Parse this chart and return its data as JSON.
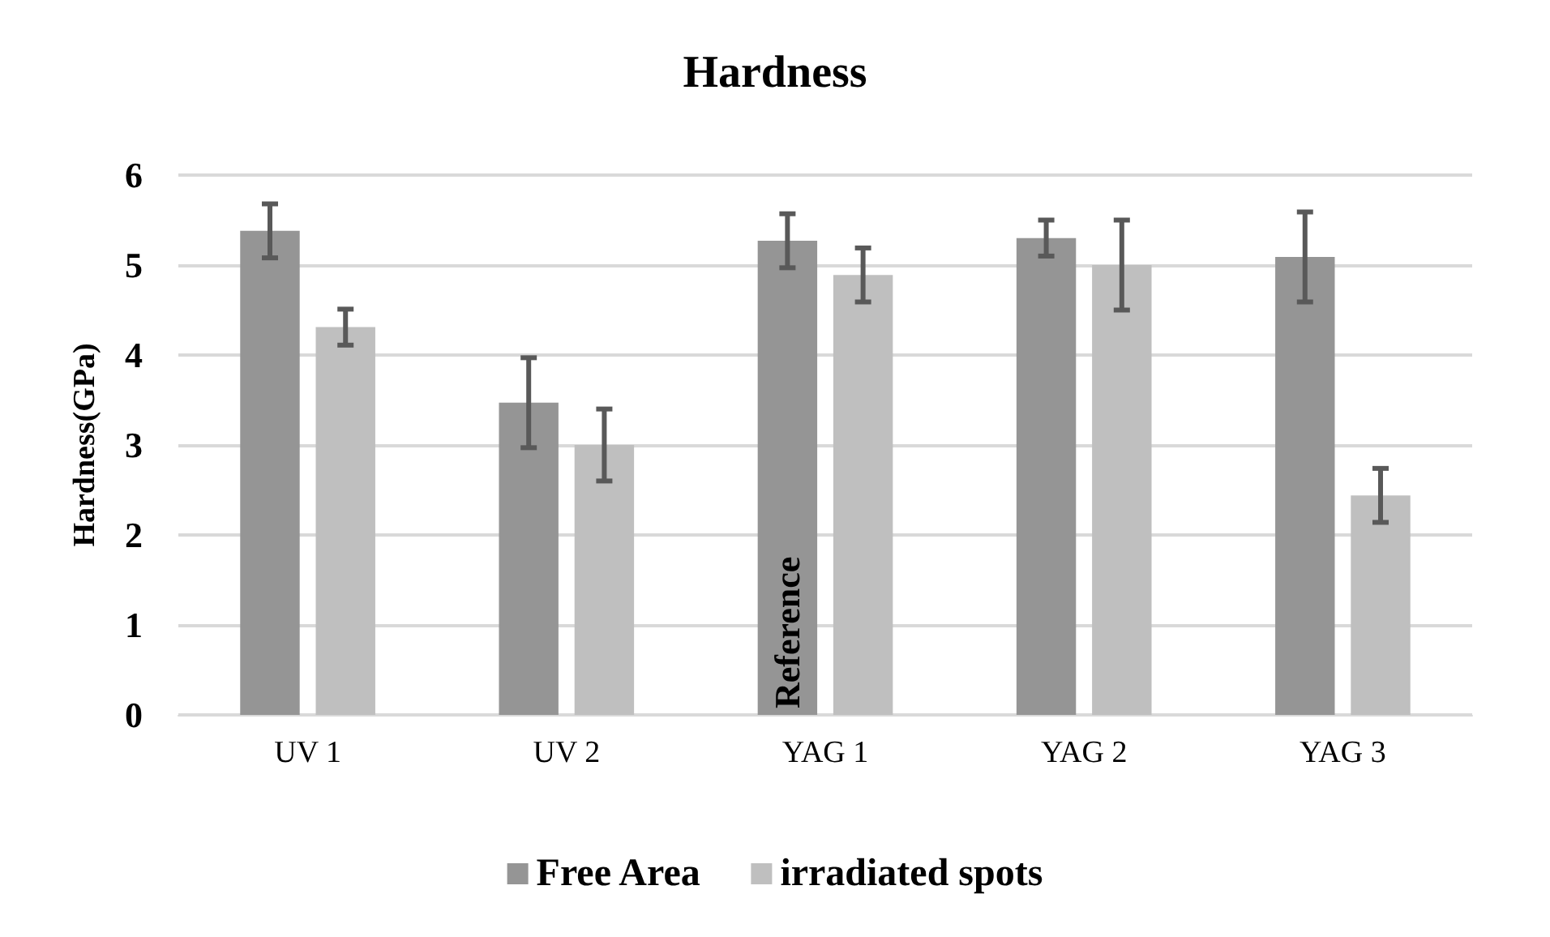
{
  "chart_data": {
    "type": "bar",
    "title": "Hardness",
    "ylabel": "Hardness(GPa)",
    "categories": [
      "UV 1",
      "UV 2",
      "YAG 1",
      "YAG 2",
      "YAG 3"
    ],
    "series": [
      {
        "name": "Free Area",
        "color": "#959595",
        "values": [
          5.38,
          3.47,
          5.27,
          5.3,
          5.09
        ],
        "errors": [
          0.3,
          0.5,
          0.3,
          0.2,
          0.5
        ]
      },
      {
        "name": "irradiated spots",
        "color": "#bfbfbf",
        "values": [
          4.31,
          3.0,
          4.89,
          5.0,
          2.44
        ],
        "errors": [
          0.2,
          0.4,
          0.3,
          0.5,
          0.3
        ]
      }
    ],
    "annotations": [
      {
        "text": "Reference",
        "x": "YAG 1"
      }
    ],
    "ylim": [
      0,
      6
    ],
    "yticks": [
      0,
      1,
      2,
      3,
      4,
      5,
      6
    ],
    "grid": "y",
    "legend": "bottom"
  }
}
